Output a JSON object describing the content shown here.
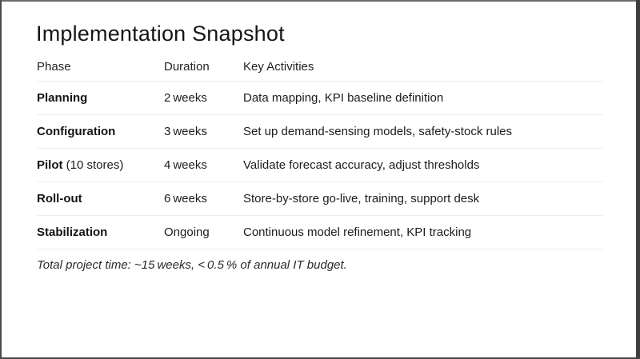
{
  "slide": {
    "title": "Implementation Snapshot",
    "table": {
      "columns": [
        "Phase",
        "Duration",
        "Key Activities"
      ],
      "rows": [
        {
          "phase": "Planning",
          "phase_note": "",
          "duration": "2 weeks",
          "activities": "Data mapping, KPI baseline definition"
        },
        {
          "phase": "Configuration",
          "phase_note": "",
          "duration": "3 weeks",
          "activities": "Set up demand-sensing models, safety-stock rules"
        },
        {
          "phase": "Pilot",
          "phase_note": " (10 stores)",
          "duration": "4 weeks",
          "activities": "Validate forecast accuracy, adjust thresholds"
        },
        {
          "phase": "Roll-out",
          "phase_note": "",
          "duration": "6 weeks",
          "activities": "Store-by-store go-live, training, support desk"
        },
        {
          "phase": "Stabilization",
          "phase_note": "",
          "duration": "Ongoing",
          "activities": "Continuous model refinement, KPI tracking"
        }
      ]
    },
    "footnote": "Total project time: ~15 weeks, < 0.5 % of annual IT budget.",
    "colors": {
      "background": "#ffffff",
      "text": "#1c1c1e",
      "divider": "#ededed",
      "frame": "#4a4a4a"
    }
  }
}
